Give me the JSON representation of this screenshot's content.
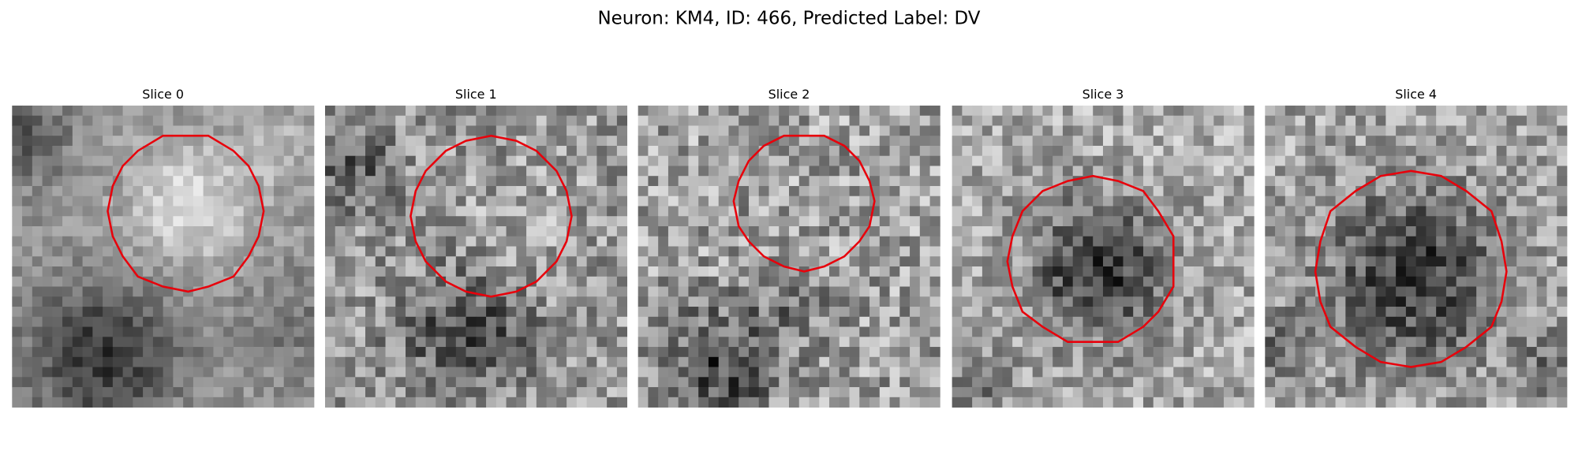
{
  "title": "Neuron: KM4, ID: 466, Predicted Label: DV",
  "panels": [
    {
      "title": "Slice 0"
    },
    {
      "title": "Slice 1"
    },
    {
      "title": "Slice 2"
    },
    {
      "title": "Slice 3"
    },
    {
      "title": "Slice 4"
    }
  ]
}
